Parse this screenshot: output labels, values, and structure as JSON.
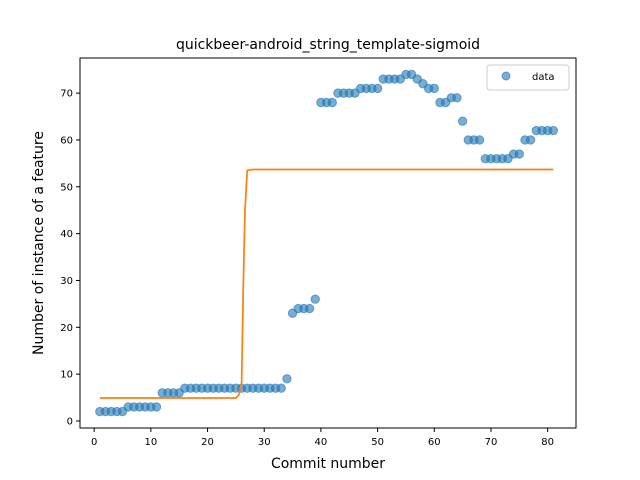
{
  "chart_data": {
    "type": "scatter",
    "title": "quickbeer-android_string_template-sigmoid",
    "xlabel": "Commit number",
    "ylabel": "Number of instance of a feature",
    "xlim": [
      -2.5,
      85
    ],
    "ylim": [
      -1.5,
      77.5
    ],
    "xticks": [
      0,
      10,
      20,
      30,
      40,
      50,
      60,
      70,
      80
    ],
    "yticks": [
      0,
      10,
      20,
      30,
      40,
      50,
      60,
      70
    ],
    "grid": false,
    "legend": {
      "position": "top-right",
      "entries": [
        "data"
      ]
    },
    "colors": {
      "data": "#1f77b4",
      "fit": "#ff7f0e"
    },
    "series": [
      {
        "name": "data",
        "kind": "scatter",
        "x": [
          1,
          2,
          3,
          4,
          5,
          6,
          7,
          8,
          9,
          10,
          11,
          12,
          13,
          14,
          15,
          16,
          17,
          18,
          19,
          20,
          21,
          22,
          23,
          24,
          25,
          26,
          27,
          28,
          29,
          30,
          31,
          32,
          33,
          34,
          35,
          36,
          37,
          38,
          39,
          40,
          41,
          42,
          43,
          44,
          45,
          46,
          47,
          48,
          49,
          50,
          51,
          52,
          53,
          54,
          55,
          56,
          57,
          58,
          59,
          60,
          61,
          62,
          63,
          64,
          65,
          66,
          67,
          68,
          69,
          70,
          71,
          72,
          73,
          74,
          75,
          76,
          77,
          78,
          79,
          80,
          81
        ],
        "y": [
          2,
          2,
          2,
          2,
          2,
          3,
          3,
          3,
          3,
          3,
          3,
          6,
          6,
          6,
          6,
          7,
          7,
          7,
          7,
          7,
          7,
          7,
          7,
          7,
          7,
          7,
          7,
          7,
          7,
          7,
          7,
          7,
          7,
          9,
          23,
          24,
          24,
          24,
          26,
          68,
          68,
          68,
          70,
          70,
          70,
          70,
          71,
          71,
          71,
          71,
          73,
          73,
          73,
          73,
          74,
          74,
          73,
          72,
          71,
          71,
          68,
          68,
          69,
          69,
          64,
          60,
          60,
          60,
          56,
          56,
          56,
          56,
          56,
          57,
          57,
          60,
          60,
          62,
          62,
          62,
          62
        ]
      },
      {
        "kind": "line",
        "x": [
          1,
          2,
          3,
          4,
          5,
          6,
          7,
          8,
          9,
          10,
          11,
          12,
          13,
          14,
          15,
          16,
          17,
          18,
          19,
          20,
          21,
          22,
          23,
          24,
          25,
          25.5,
          26,
          26.3,
          26.6,
          27,
          28,
          29,
          30,
          40,
          50,
          60,
          70,
          80,
          81
        ],
        "y": [
          4.9,
          4.9,
          4.9,
          4.9,
          4.9,
          4.9,
          4.9,
          4.9,
          4.9,
          4.9,
          4.9,
          4.9,
          4.9,
          4.9,
          4.9,
          4.9,
          4.9,
          4.9,
          4.9,
          4.9,
          4.9,
          4.9,
          4.9,
          4.9,
          4.9,
          5.5,
          8,
          29,
          45,
          53.5,
          53.7,
          53.7,
          53.7,
          53.7,
          53.7,
          53.7,
          53.7,
          53.7,
          53.7
        ]
      }
    ]
  }
}
